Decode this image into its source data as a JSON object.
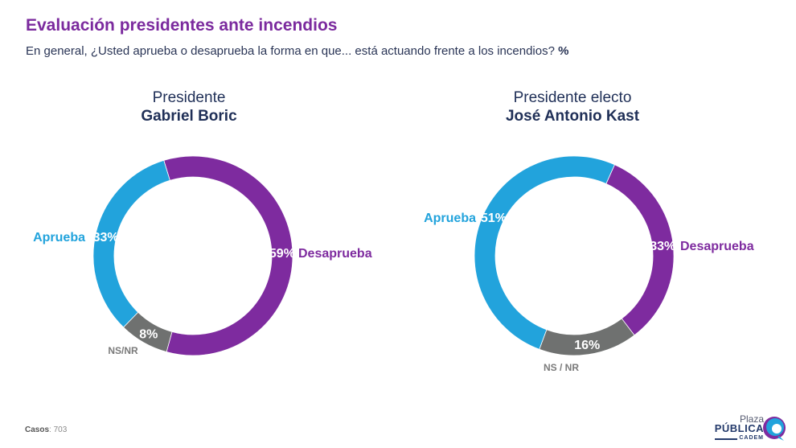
{
  "header": {
    "title": "Evaluación presidentes ante incendios",
    "subtitle": "En general, ¿Usted aprueba o desaprueba la forma en que... está actuando frente a los incendios?",
    "subtitle_unit": "%"
  },
  "colors": {
    "aprueba": "#22a3dc",
    "desaprueba": "#7e2b9f",
    "ns": "#6f7170",
    "title": "#7b2a9e",
    "heading": "#1f2f57"
  },
  "chart_data": [
    {
      "type": "pie",
      "title_line1": "Presidente",
      "title_line2": "Gabriel Boric",
      "donut": true,
      "slices": [
        {
          "key": "desaprueba",
          "label": "Desaprueba",
          "value": 59,
          "value_label": "59%"
        },
        {
          "key": "ns",
          "label": "NS/NR",
          "value": 8,
          "value_label": "8%"
        },
        {
          "key": "aprueba",
          "label": "Aprueba",
          "value": 33,
          "value_label": "33%"
        }
      ]
    },
    {
      "type": "pie",
      "title_line1": "Presidente electo",
      "title_line2": "José Antonio Kast",
      "donut": true,
      "slices": [
        {
          "key": "desaprueba",
          "label": "Desaprueba",
          "value": 33,
          "value_label": "33%"
        },
        {
          "key": "ns",
          "label": "NS / NR",
          "value": 16,
          "value_label": "16%"
        },
        {
          "key": "aprueba",
          "label": "Aprueba",
          "value": 51,
          "value_label": "51%"
        }
      ]
    }
  ],
  "footer": {
    "cases_label": "Casos",
    "cases_value": ": 703"
  },
  "logo": {
    "line1": "Plaza",
    "line2": "PÚBLICA",
    "line3": "CADEM"
  }
}
